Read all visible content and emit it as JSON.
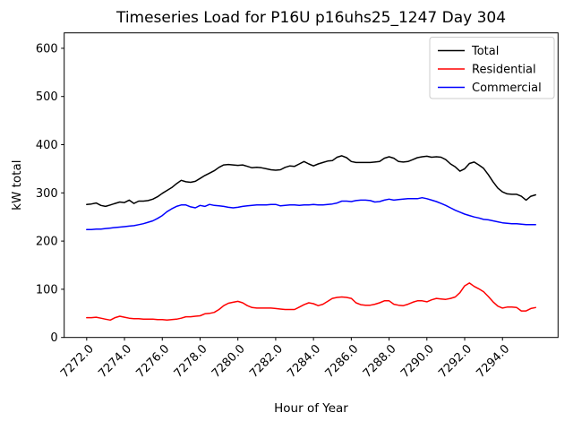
{
  "chart_data": {
    "type": "line",
    "title": "Timeseries Load for P16U p16uhs25_1247  Day 304",
    "xlabel": "Hour of Year",
    "ylabel": "kW total",
    "xlim": [
      7270.81,
      7296.94
    ],
    "ylim": [
      0,
      632
    ],
    "grid": false,
    "x_start": 7272.0,
    "x_step": 0.25,
    "x_end": 7295.75,
    "xticks": {
      "values": [
        7272,
        7274,
        7276,
        7278,
        7280,
        7282,
        7284,
        7286,
        7288,
        7290,
        7292,
        7294
      ],
      "labels": [
        "7272.0",
        "7274.0",
        "7276.0",
        "7278.0",
        "7280.0",
        "7282.0",
        "7284.0",
        "7286.0",
        "7288.0",
        "7290.0",
        "7292.0",
        "7294.0"
      ],
      "rotation": 45
    },
    "yticks": {
      "values": [
        0,
        100,
        200,
        300,
        400,
        500,
        600
      ],
      "labels": [
        "0",
        "100",
        "200",
        "300",
        "400",
        "500",
        "600"
      ]
    },
    "legend": {
      "position": "upper right",
      "entries": [
        {
          "label": "Total",
          "color": "#000000"
        },
        {
          "label": "Residential",
          "color": "#ff0000"
        },
        {
          "label": "Commercial",
          "color": "#0000ff"
        }
      ]
    },
    "series": [
      {
        "name": "Total",
        "color": "#000000",
        "values": [
          276,
          277,
          279,
          274,
          272,
          275,
          278,
          281,
          280,
          285,
          278,
          283,
          283,
          284,
          287,
          292,
          299,
          305,
          311,
          319,
          326,
          323,
          322,
          324,
          330,
          336,
          341,
          346,
          353,
          358,
          359,
          358,
          357,
          358,
          355,
          352,
          353,
          352,
          350,
          348,
          347,
          348,
          353,
          356,
          355,
          360,
          365,
          360,
          356,
          360,
          363,
          366,
          367,
          374,
          377,
          373,
          365,
          363,
          363,
          363,
          363,
          364,
          365,
          372,
          375,
          372,
          365,
          364,
          365,
          369,
          373,
          375,
          376,
          374,
          375,
          374,
          369,
          360,
          354,
          345,
          350,
          361,
          364,
          358,
          351,
          338,
          323,
          310,
          302,
          298,
          297,
          297,
          293,
          285,
          293,
          296
        ]
      },
      {
        "name": "Residential",
        "color": "#ff0000",
        "values": [
          41,
          41,
          42,
          40,
          38,
          36,
          41,
          44,
          42,
          40,
          39,
          39,
          38,
          38,
          38,
          37,
          37,
          36,
          37,
          38,
          40,
          43,
          43,
          44,
          45,
          49,
          50,
          52,
          58,
          66,
          71,
          73,
          75,
          72,
          66,
          62,
          61,
          61,
          61,
          61,
          60,
          59,
          58,
          58,
          58,
          63,
          68,
          72,
          70,
          66,
          69,
          75,
          81,
          83,
          84,
          83,
          81,
          72,
          68,
          67,
          67,
          69,
          72,
          76,
          76,
          69,
          67,
          66,
          69,
          73,
          76,
          76,
          74,
          78,
          81,
          80,
          79,
          81,
          84,
          93,
          107,
          113,
          106,
          101,
          95,
          85,
          74,
          65,
          61,
          63,
          63,
          62,
          55,
          55,
          60,
          62
        ]
      },
      {
        "name": "Commercial",
        "color": "#0000ff",
        "values": [
          224,
          224,
          225,
          225,
          226,
          227,
          228,
          229,
          230,
          231,
          232,
          234,
          236,
          239,
          242,
          247,
          253,
          261,
          267,
          272,
          275,
          275,
          271,
          269,
          274,
          272,
          276,
          274,
          273,
          272,
          270,
          269,
          270,
          272,
          273,
          274,
          275,
          275,
          275,
          276,
          276,
          273,
          274,
          275,
          275,
          274,
          275,
          275,
          276,
          275,
          275,
          276,
          277,
          279,
          283,
          283,
          282,
          284,
          285,
          285,
          284,
          281,
          282,
          285,
          287,
          285,
          286,
          287,
          288,
          288,
          288,
          290,
          288,
          285,
          282,
          278,
          274,
          269,
          264,
          260,
          256,
          253,
          250,
          248,
          245,
          244,
          242,
          240,
          238,
          237,
          236,
          236,
          235,
          234,
          234,
          234
        ]
      }
    ]
  }
}
